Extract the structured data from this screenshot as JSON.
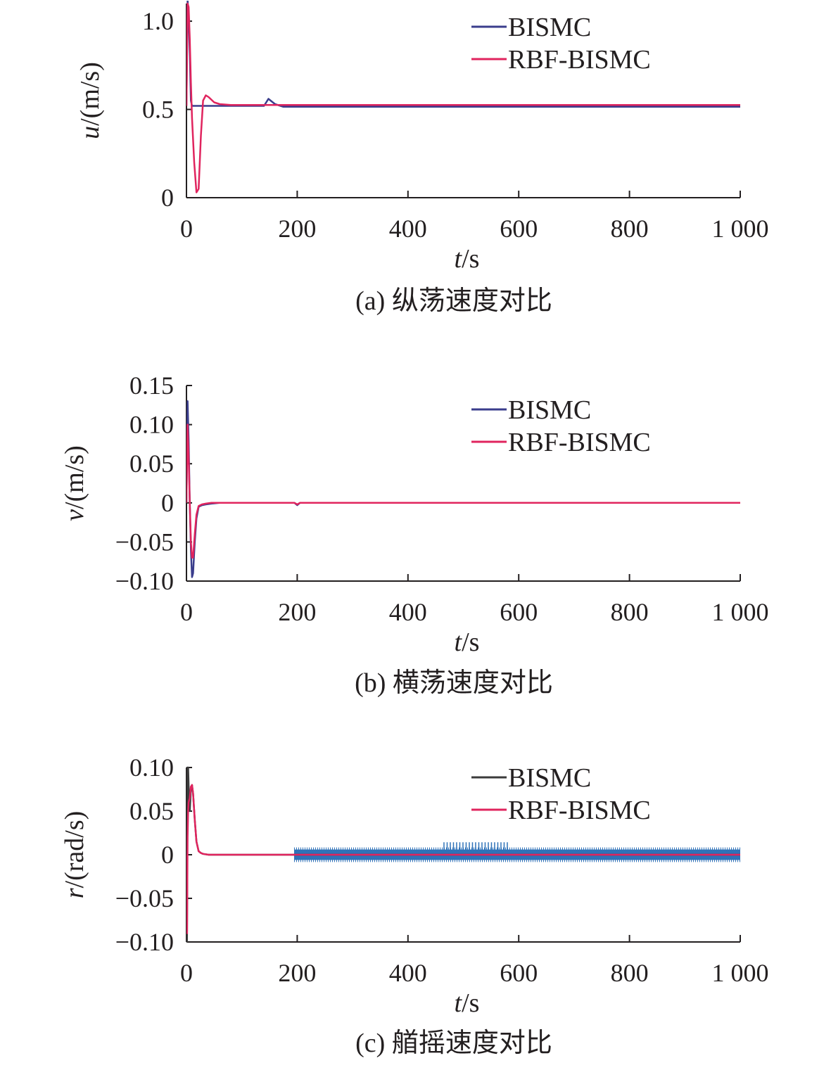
{
  "colors": {
    "axis": "#231f20",
    "bismc": "#3a3d8c",
    "bismc_dark": "#3b3b3b",
    "rbf": "#e0245e",
    "band": "#2f72b8"
  },
  "chart_data": [
    {
      "type": "line",
      "caption": "(a) 纵荡速度对比",
      "xlabel_var": "t",
      "xlabel_unit": "/s",
      "ylabel_var": "u",
      "ylabel_unit": "/(m/s)",
      "xlim": [
        0,
        1000
      ],
      "ylim": [
        0,
        1.1
      ],
      "xticks": [
        0,
        200,
        400,
        600,
        800,
        1000
      ],
      "xtick_labels": [
        "0",
        "200",
        "400",
        "600",
        "800",
        "1 000"
      ],
      "yticks": [
        0,
        0.5,
        1.0
      ],
      "ytick_labels": [
        "0",
        "0.5",
        "1.0"
      ],
      "legend_position": "top-right",
      "series": [
        {
          "name": "BISMC",
          "color_key": "bismc",
          "x": [
            0,
            2,
            4,
            6,
            8,
            10,
            14,
            18,
            22,
            26,
            30,
            35,
            40,
            50,
            60,
            80,
            100,
            140,
            148,
            152,
            160,
            175,
            200,
            300,
            400,
            500,
            600,
            700,
            800,
            900,
            1000
          ],
          "y": [
            0.52,
            1.12,
            1.02,
            0.82,
            0.55,
            0.52,
            0.52,
            0.52,
            0.52,
            0.52,
            0.52,
            0.52,
            0.52,
            0.52,
            0.52,
            0.52,
            0.52,
            0.52,
            0.56,
            0.55,
            0.53,
            0.515,
            0.515,
            0.515,
            0.515,
            0.515,
            0.515,
            0.515,
            0.515,
            0.515,
            0.515
          ]
        },
        {
          "name": "RBF-BISMC",
          "color_key": "rbf",
          "x": [
            0,
            2,
            4,
            6,
            8,
            10,
            14,
            18,
            22,
            26,
            30,
            35,
            40,
            50,
            60,
            80,
            100,
            140,
            148,
            152,
            160,
            175,
            200,
            300,
            400,
            500,
            600,
            700,
            800,
            900,
            1000
          ],
          "y": [
            0.52,
            1.1,
            1.08,
            0.9,
            0.65,
            0.45,
            0.2,
            0.03,
            0.05,
            0.35,
            0.55,
            0.58,
            0.57,
            0.54,
            0.53,
            0.525,
            0.525,
            0.525,
            0.525,
            0.525,
            0.525,
            0.525,
            0.525,
            0.525,
            0.525,
            0.525,
            0.525,
            0.525,
            0.525,
            0.525,
            0.525
          ]
        }
      ]
    },
    {
      "type": "line",
      "caption": "(b) 横荡速度对比",
      "xlabel_var": "t",
      "xlabel_unit": "/s",
      "ylabel_var": "v",
      "ylabel_unit": "/(m/s)",
      "xlim": [
        0,
        1000
      ],
      "ylim": [
        -0.1,
        0.15
      ],
      "xticks": [
        0,
        200,
        400,
        600,
        800,
        1000
      ],
      "xtick_labels": [
        "0",
        "200",
        "400",
        "600",
        "800",
        "1 000"
      ],
      "yticks": [
        -0.1,
        -0.05,
        0,
        0.05,
        0.1,
        0.15
      ],
      "ytick_labels": [
        "−0.10",
        "−0.05",
        "0",
        "0.05",
        "0.10",
        "0.15"
      ],
      "legend_position": "top-right",
      "series": [
        {
          "name": "BISMC",
          "color_key": "bismc",
          "x": [
            0,
            2,
            4,
            6,
            8,
            10,
            12,
            15,
            18,
            22,
            28,
            35,
            45,
            60,
            80,
            195,
            200,
            205,
            220,
            400,
            600,
            800,
            1000
          ],
          "y": [
            0.0,
            0.13,
            0.08,
            0.0,
            -0.06,
            -0.095,
            -0.09,
            -0.05,
            -0.02,
            -0.005,
            -0.003,
            -0.002,
            -0.001,
            0.0,
            0.0,
            0.0,
            -0.003,
            0.0,
            0.0,
            0.0,
            0.0,
            0.0,
            0.0
          ]
        },
        {
          "name": "RBF-BISMC",
          "color_key": "rbf",
          "x": [
            0,
            2,
            4,
            6,
            8,
            10,
            12,
            15,
            18,
            22,
            28,
            35,
            45,
            60,
            80,
            195,
            200,
            205,
            220,
            400,
            600,
            800,
            1000
          ],
          "y": [
            0.0,
            0.1,
            0.06,
            0.0,
            -0.05,
            -0.07,
            -0.07,
            -0.04,
            -0.015,
            -0.004,
            -0.002,
            -0.001,
            0.0,
            0.0,
            0.0,
            0.0,
            -0.002,
            0.0,
            0.0,
            0.0,
            0.0,
            0.0,
            0.0
          ]
        }
      ]
    },
    {
      "type": "line",
      "caption": "(c) 艏摇速度对比",
      "xlabel_var": "t",
      "xlabel_unit": "/s",
      "ylabel_var": "r",
      "ylabel_unit": "/(rad/s)",
      "xlim": [
        0,
        1000
      ],
      "ylim": [
        -0.1,
        0.1
      ],
      "xticks": [
        0,
        200,
        400,
        600,
        800,
        1000
      ],
      "xtick_labels": [
        "0",
        "200",
        "400",
        "600",
        "800",
        "1 000"
      ],
      "yticks": [
        -0.1,
        -0.05,
        0,
        0.05,
        0.1
      ],
      "ytick_labels": [
        "−0.10",
        "−0.05",
        "0",
        "0.05",
        "0.10"
      ],
      "legend_position": "top-right",
      "series": [
        {
          "name": "BISMC",
          "color_key": "bismc_dark",
          "x": [
            0,
            1,
            2,
            3,
            4,
            6,
            8,
            10,
            12,
            15,
            18,
            22,
            26,
            30,
            40,
            60,
            100,
            200,
            400,
            600,
            800,
            1000
          ],
          "y": [
            0.0,
            -0.1,
            0.1,
            0.1,
            0.08,
            0.05,
            0.075,
            0.08,
            0.07,
            0.04,
            0.015,
            0.004,
            0.002,
            0.001,
            0.0,
            0.0,
            0.0,
            0.0,
            0.0,
            0.0,
            0.0,
            0.0
          ]
        },
        {
          "name": "RBF-BISMC",
          "color_key": "rbf",
          "x": [
            0,
            1,
            2,
            3,
            4,
            6,
            8,
            10,
            12,
            15,
            18,
            22,
            26,
            30,
            40,
            60,
            100,
            200,
            400,
            600,
            800,
            1000
          ],
          "y": [
            0.0,
            -0.09,
            0.02,
            0.05,
            0.06,
            0.065,
            0.078,
            0.08,
            0.07,
            0.04,
            0.015,
            0.004,
            0.002,
            0.001,
            0.0,
            0.0,
            0.0,
            0.0,
            0.0,
            0.0,
            0.0,
            0.0
          ]
        }
      ],
      "chatter_band": {
        "color_key": "band",
        "x_range": [
          195,
          1000
        ],
        "amplitude": 0.006,
        "dense_x_range": [
          465,
          585
        ],
        "dense_amplitude": 0.011
      }
    }
  ]
}
